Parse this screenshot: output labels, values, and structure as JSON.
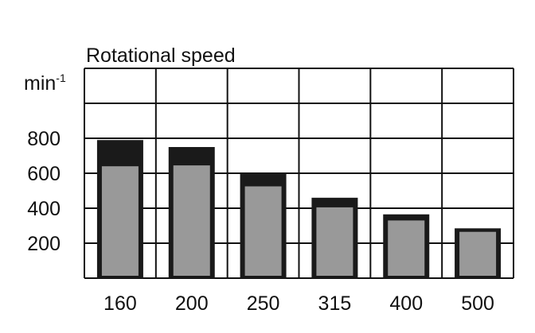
{
  "chart_data": {
    "type": "bar",
    "title": "Rotational speed",
    "ylabel": "min",
    "ylabel_superscript": "-1",
    "xlabel": "",
    "categories": [
      "160",
      "200",
      "250",
      "315",
      "400",
      "500"
    ],
    "series": [
      {
        "values": [
          790,
          750,
          600,
          460,
          365,
          285
        ],
        "color": "#1a1a1a"
      },
      {
        "values": [
          640,
          645,
          525,
          405,
          330,
          265
        ],
        "color": "#999999"
      }
    ],
    "yticks": [
      200,
      400,
      600,
      800
    ],
    "ylim": [
      0,
      1200
    ],
    "grid": true,
    "legend": "none"
  }
}
